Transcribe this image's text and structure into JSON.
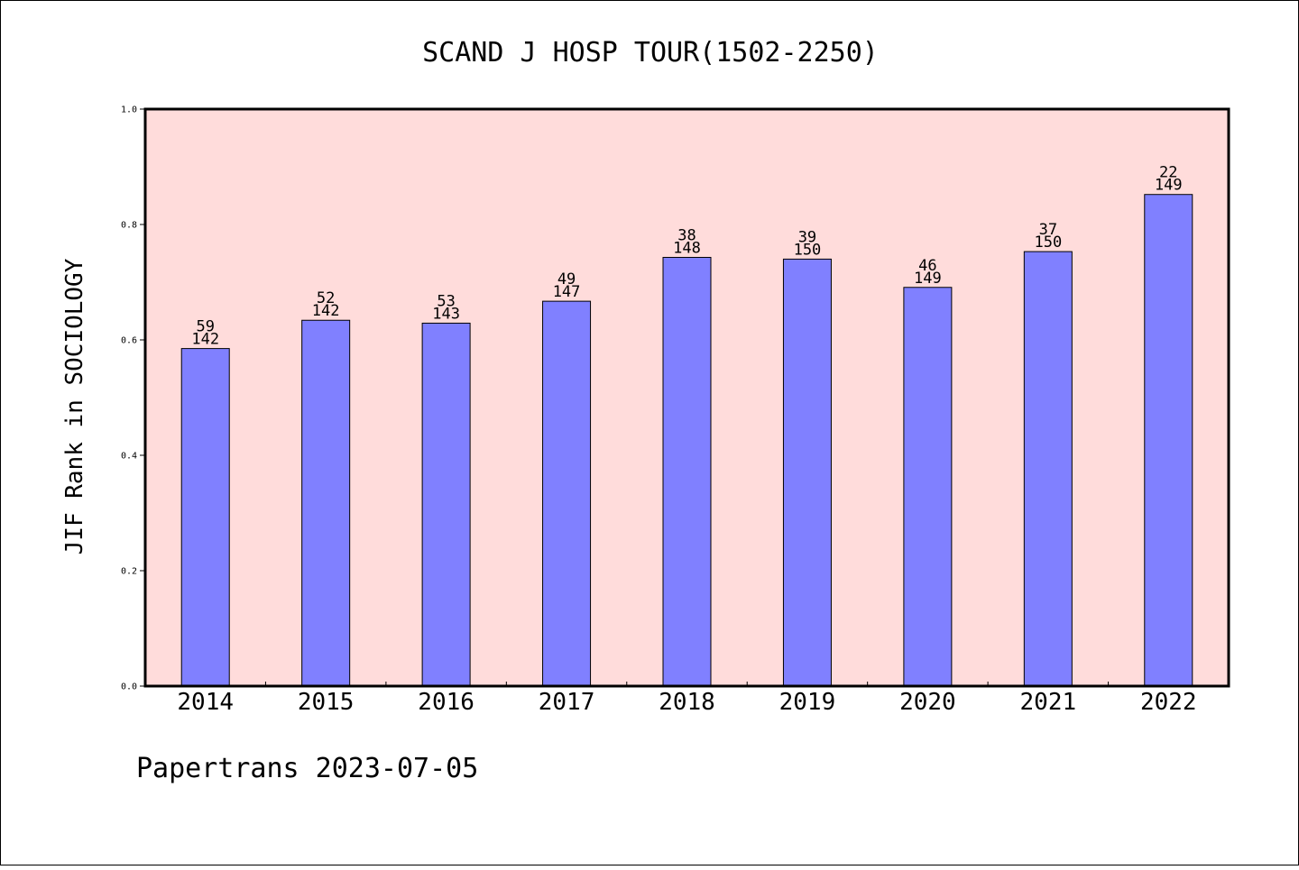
{
  "footer": "Papertrans 2023-07-05",
  "chart_data": {
    "type": "bar",
    "title": "SCAND J HOSP TOUR(1502-2250)",
    "xlabel": "",
    "ylabel": "JIF Rank in SOCIOLOGY",
    "ylim": [
      0,
      1.0
    ],
    "yticks": [
      "0.0",
      "0.2",
      "0.4",
      "0.6",
      "0.8",
      "1.0"
    ],
    "categories": [
      "2014",
      "2015",
      "2016",
      "2017",
      "2018",
      "2019",
      "2020",
      "2021",
      "2022"
    ],
    "values": [
      0.585,
      0.634,
      0.629,
      0.667,
      0.743,
      0.74,
      0.691,
      0.753,
      0.852
    ],
    "labels_top": [
      "59",
      "52",
      "53",
      "49",
      "38",
      "39",
      "46",
      "37",
      "22"
    ],
    "labels_bottom": [
      "142",
      "142",
      "143",
      "147",
      "148",
      "150",
      "149",
      "150",
      "149"
    ],
    "grid": false,
    "colors": {
      "plot_background": "#ffdcdb",
      "bar_fill": "#8080ff",
      "bar_stroke": "#000000"
    }
  }
}
